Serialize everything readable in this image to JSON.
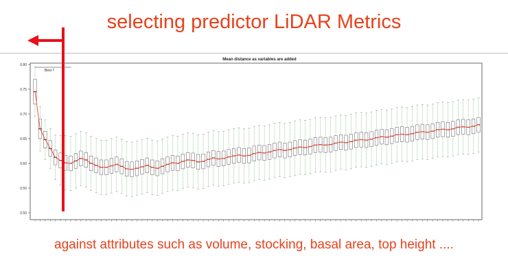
{
  "slide": {
    "title": "selecting predictor LiDAR Metrics",
    "caption": "against attributes such as volume, stocking, basal area, top height ...."
  },
  "colors": {
    "accent": "#e8411c",
    "arrow": "#e8101a",
    "median": "#8b1a1a",
    "trend_line": "#e05a47",
    "whisker": "#3a9a3a",
    "box": "#555555"
  },
  "chart_data": {
    "type": "box",
    "title": "Mean distance as variables are added",
    "xlabel": "",
    "ylabel": "",
    "ylim": [
      0.5,
      0.8
    ],
    "yticks": [
      "0.80",
      "0.75",
      "0.70",
      "0.65",
      "0.60",
      "0.55",
      "0.50"
    ],
    "ytick_values": [
      0.8,
      0.75,
      0.7,
      0.65,
      0.6,
      0.55,
      0.5
    ],
    "annotation": "Best 7",
    "best_index": 7,
    "x_count": 88,
    "medians": [
      0.745,
      0.67,
      0.648,
      0.63,
      0.612,
      0.606,
      0.601,
      0.6,
      0.605,
      0.61,
      0.607,
      0.6,
      0.596,
      0.592,
      0.592,
      0.595,
      0.598,
      0.594,
      0.589,
      0.588,
      0.59,
      0.593,
      0.596,
      0.592,
      0.59,
      0.594,
      0.598,
      0.601,
      0.6,
      0.604,
      0.607,
      0.606,
      0.603,
      0.604,
      0.608,
      0.611,
      0.609,
      0.61,
      0.613,
      0.615,
      0.617,
      0.615,
      0.616,
      0.62,
      0.622,
      0.621,
      0.623,
      0.626,
      0.628,
      0.626,
      0.628,
      0.631,
      0.633,
      0.632,
      0.634,
      0.637,
      0.638,
      0.637,
      0.638,
      0.641,
      0.643,
      0.642,
      0.644,
      0.647,
      0.648,
      0.647,
      0.649,
      0.652,
      0.654,
      0.653,
      0.655,
      0.658,
      0.659,
      0.658,
      0.66,
      0.663,
      0.664,
      0.663,
      0.665,
      0.668,
      0.669,
      0.668,
      0.67,
      0.673,
      0.674,
      0.673,
      0.675,
      0.678
    ],
    "box_halfspread": [
      0.025,
      0.02,
      0.017,
      0.016,
      0.015,
      0.015,
      0.015,
      0.015,
      0.015,
      0.015,
      0.015,
      0.015,
      0.015,
      0.015,
      0.015,
      0.015,
      0.015,
      0.015,
      0.015,
      0.015,
      0.015,
      0.015,
      0.015,
      0.015,
      0.015,
      0.015,
      0.015,
      0.015,
      0.015,
      0.015,
      0.015,
      0.015,
      0.015,
      0.015,
      0.015,
      0.015,
      0.015,
      0.015,
      0.015,
      0.015,
      0.015,
      0.015,
      0.015,
      0.015,
      0.015,
      0.015,
      0.015,
      0.015,
      0.015,
      0.015,
      0.015,
      0.015,
      0.015,
      0.015,
      0.015,
      0.015,
      0.015,
      0.015,
      0.015,
      0.015,
      0.015,
      0.015,
      0.015,
      0.015,
      0.015,
      0.015,
      0.015,
      0.015,
      0.015,
      0.015,
      0.015,
      0.015,
      0.015,
      0.015,
      0.015,
      0.015,
      0.015,
      0.015,
      0.015,
      0.015,
      0.015,
      0.015,
      0.015,
      0.015,
      0.015,
      0.015,
      0.015,
      0.015
    ],
    "whisker_halfspread": [
      0.05,
      0.045,
      0.04,
      0.04,
      0.045,
      0.05,
      0.055,
      0.055,
      0.055,
      0.055,
      0.055,
      0.055,
      0.055,
      0.055,
      0.055,
      0.055,
      0.055,
      0.055,
      0.055,
      0.055,
      0.055,
      0.055,
      0.055,
      0.055,
      0.055,
      0.055,
      0.055,
      0.055,
      0.055,
      0.055,
      0.055,
      0.055,
      0.055,
      0.055,
      0.055,
      0.055,
      0.055,
      0.055,
      0.055,
      0.055,
      0.055,
      0.055,
      0.055,
      0.055,
      0.055,
      0.055,
      0.055,
      0.055,
      0.055,
      0.055,
      0.055,
      0.055,
      0.055,
      0.055,
      0.055,
      0.055,
      0.055,
      0.055,
      0.055,
      0.055,
      0.055,
      0.055,
      0.055,
      0.055,
      0.055,
      0.055,
      0.055,
      0.055,
      0.055,
      0.055,
      0.055,
      0.055,
      0.055,
      0.055,
      0.055,
      0.055,
      0.055,
      0.055,
      0.055,
      0.055,
      0.055,
      0.055,
      0.055,
      0.055,
      0.055,
      0.055,
      0.055,
      0.055
    ]
  }
}
